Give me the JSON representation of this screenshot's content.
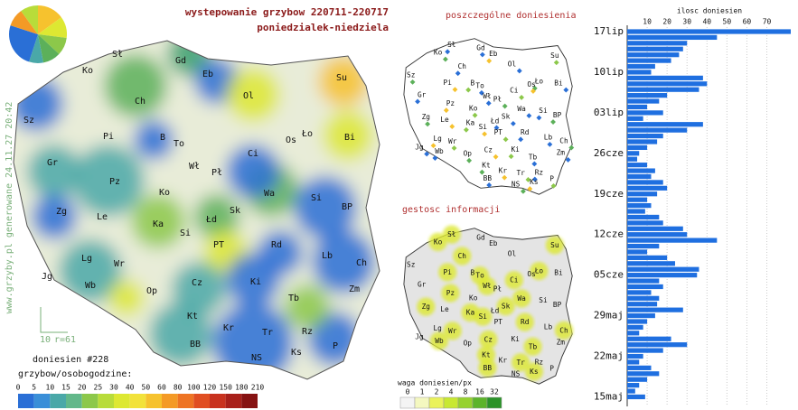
{
  "header": {
    "title": "wystepowanie grzybow 220711-220717",
    "subtitle": "poniedzialek-niedziela"
  },
  "side_note": "www.grzyby.pl generowane 24.11.27 20:42",
  "map": {
    "scale_label": "10",
    "radius_label": "r=61",
    "reports": "doniesien #228",
    "cities": [
      "Sł",
      "Gd",
      "Ko",
      "Eb",
      "Su",
      "Ol",
      "Ch",
      "Sz",
      "Pi",
      "B",
      "To",
      "Bi",
      "Ło",
      "Os",
      "Ci",
      "Gr",
      "Wł",
      "Pł",
      "Pz",
      "Ko",
      "Wa",
      "Si",
      "Zg",
      "Le",
      "Ka",
      "Łd",
      "Sk",
      "BP",
      "Si",
      "PT",
      "Rd",
      "Lb",
      "Ch",
      "Lg",
      "Wr",
      "Jg",
      "Wb",
      "Op",
      "Cz",
      "Ki",
      "Tb",
      "Zm",
      "Kt",
      "Kr",
      "Tr",
      "Rz",
      "BB",
      "NS",
      "Ks",
      "P"
    ]
  },
  "legend": {
    "title": "grzybow/osobogodzine:",
    "ticks": [
      0,
      5,
      10,
      15,
      20,
      25,
      30,
      40,
      50,
      60,
      80,
      100,
      120,
      150,
      180,
      210
    ],
    "colors": [
      "#2a6fd6",
      "#3a8fd8",
      "#4aa8a8",
      "#62b88a",
      "#8cc84a",
      "#b8dc3a",
      "#dde832",
      "#f2e23a",
      "#f6c22e",
      "#f49a26",
      "#ee7424",
      "#e04e22",
      "#c8321e",
      "#a8201a",
      "#861212"
    ]
  },
  "panel_points": {
    "title": "poszczególne doniesienia"
  },
  "panel_density": {
    "title": "gestosc informacji",
    "legend_title": "waga doniesien/px",
    "ticks": [
      0,
      1,
      2,
      4,
      8,
      16,
      32
    ],
    "colors": [
      "#f4f4f4",
      "#f4f8c0",
      "#eaf25a",
      "#c8e832",
      "#96d22e",
      "#5cb42a",
      "#2a9228"
    ]
  },
  "chart_data": {
    "type": "bar",
    "orientation": "horizontal",
    "title": "ilosc doniesien",
    "color": "#1f6fe0",
    "xlim": [
      0,
      82
    ],
    "xticks": [
      10,
      20,
      30,
      40,
      50,
      60,
      70
    ],
    "categories": [
      "17lip",
      null,
      null,
      null,
      null,
      null,
      null,
      "10lip",
      null,
      null,
      null,
      null,
      null,
      null,
      "03lip",
      null,
      null,
      null,
      null,
      null,
      null,
      "26cze",
      null,
      null,
      null,
      null,
      null,
      null,
      "19cze",
      null,
      null,
      null,
      null,
      null,
      null,
      "12cze",
      null,
      null,
      null,
      null,
      null,
      null,
      "05cze",
      null,
      null,
      null,
      null,
      null,
      null,
      "29maj",
      null,
      null,
      null,
      null,
      null,
      null,
      "22maj",
      null,
      null,
      null,
      null,
      null,
      null,
      "15maj"
    ],
    "values": [
      82,
      45,
      30,
      28,
      26,
      22,
      14,
      12,
      38,
      40,
      36,
      20,
      16,
      10,
      18,
      8,
      38,
      30,
      18,
      15,
      10,
      6,
      5,
      10,
      14,
      12,
      18,
      20,
      15,
      10,
      12,
      9,
      16,
      18,
      28,
      30,
      45,
      16,
      10,
      20,
      24,
      36,
      35,
      16,
      18,
      12,
      16,
      15,
      28,
      14,
      10,
      8,
      6,
      22,
      30,
      18,
      8,
      6,
      12,
      16,
      10,
      6,
      4,
      9
    ]
  }
}
